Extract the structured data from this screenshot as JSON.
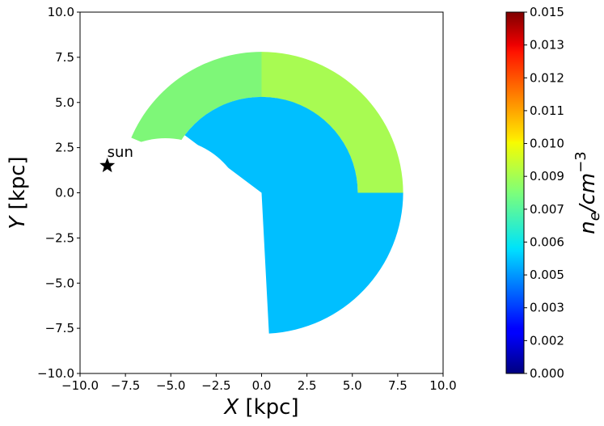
{
  "chart_data": {
    "type": "heatmap",
    "title": "",
    "xlabel": "X [kpc]",
    "ylabel": "Y [kpc]",
    "xlim": [
      -10,
      10
    ],
    "ylim": [
      -10,
      10
    ],
    "xticks": [
      "−10.0",
      "−7.5",
      "−5.0",
      "−2.5",
      "0.0",
      "2.5",
      "5.0",
      "7.5",
      "10.0"
    ],
    "yticks": [
      "−10.0",
      "−7.5",
      "−5.0",
      "−2.5",
      "0.0",
      "2.5",
      "5.0",
      "7.5",
      "10.0"
    ],
    "grid": false,
    "regions": [
      {
        "name": "outer ring, upper-left",
        "ne": 0.007,
        "color": "#7ef778",
        "shape": "annulus",
        "r_inner": 5.3,
        "r_outer": 7.8,
        "angle_from_deg": 90,
        "angle_to_deg": 157
      },
      {
        "name": "outer ring, upper-right",
        "ne": 0.0083,
        "color": "#a8fb52",
        "shape": "annulus",
        "r_inner": 5.3,
        "r_outer": 7.8,
        "angle_from_deg": 0,
        "angle_to_deg": 90
      },
      {
        "name": "inner region",
        "ne": 0.0055,
        "color": "#00bfff",
        "shape": "disk",
        "r_outer": 5.3,
        "lower_r_outer": 7.8,
        "angle_from_deg": -87,
        "angle_to_deg": 143
      }
    ],
    "excluded_disk": {
      "center": [
        -5.3,
        -1.5
      ],
      "radius": 4.5
    },
    "markers": [
      {
        "label": "sun",
        "x": -8.5,
        "y": 1.5,
        "symbol": "star"
      }
    ],
    "colorbar": {
      "label": "n_e/cm^-3",
      "label_base": "n",
      "label_sub": "e",
      "label_mid": "/cm",
      "label_sup": "−3",
      "min": 0.0,
      "max": 0.015,
      "colormap": "jet",
      "ticks": [
        "0.000",
        "0.002",
        "0.003",
        "0.005",
        "0.006",
        "0.007",
        "0.009",
        "0.010",
        "0.011",
        "0.012",
        "0.013",
        "0.015"
      ]
    }
  }
}
